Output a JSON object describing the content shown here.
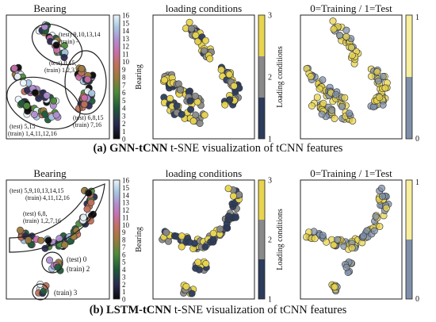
{
  "figure": {
    "panels": [
      {
        "id": "a",
        "label": "(a)",
        "method": "GNN-tCNN",
        "caption_rest": "t-SNE visualization of tCNN features"
      },
      {
        "id": "b",
        "label": "(b)",
        "method": "LSTM-tCNN",
        "caption_rest": "t-SNE visualization of tCNN features"
      }
    ]
  },
  "chart_data": [
    {
      "type": "scatter",
      "row": "a",
      "title": "Bearing",
      "colorbar_label": "Bearing",
      "colorbar_ticks": [
        "0",
        "1",
        "2",
        "3",
        "4",
        "5",
        "6",
        "7",
        "8",
        "9",
        "10",
        "11",
        "12",
        "13",
        "14",
        "15",
        "16"
      ],
      "annotations": [
        "(test) 9,10,13,14",
        "(train) -",
        "(test) 0,15,",
        "(train) 1,2,3,4",
        "(test) 6,8,15",
        "(train) 7,16",
        "(test) 5,15",
        "(train) 1,4,11,12,16"
      ]
    },
    {
      "type": "scatter",
      "row": "a",
      "title": "loading conditions",
      "colorbar_label": "Loading conditions",
      "colorbar_ticks": [
        "1",
        "2",
        "3"
      ]
    },
    {
      "type": "scatter",
      "row": "a",
      "title": "0=Training / 1=Test",
      "colorbar_ticks": [
        "0",
        "1"
      ]
    },
    {
      "type": "scatter",
      "row": "b",
      "title": "Bearing",
      "colorbar_label": "Bearing",
      "colorbar_ticks": [
        "0",
        "1",
        "2",
        "3",
        "4",
        "5",
        "6",
        "7",
        "8",
        "9",
        "10",
        "11",
        "12",
        "13",
        "14",
        "15",
        "16"
      ],
      "annotations": [
        "(test) 5,9,10,13,14,15",
        "(train) 4,11,12,16",
        "(test) 6,8,",
        "(train) 1,2,7,16",
        "(test) 0",
        "(train) 2",
        "(train) 3"
      ]
    },
    {
      "type": "scatter",
      "row": "b",
      "title": "loading conditions",
      "colorbar_label": "Loading conditions",
      "colorbar_ticks": [
        "1",
        "2",
        "3"
      ]
    },
    {
      "type": "scatter",
      "row": "b",
      "title": "0=Training / 1=Test",
      "colorbar_ticks": [
        "0",
        "1"
      ]
    }
  ],
  "colors": {
    "yellow": "#e8d44d",
    "gray": "#8a8a8a",
    "navy": "#2d3c5c",
    "light_yellow": "#f7eea0",
    "light_slate": "#7f8fa8"
  }
}
